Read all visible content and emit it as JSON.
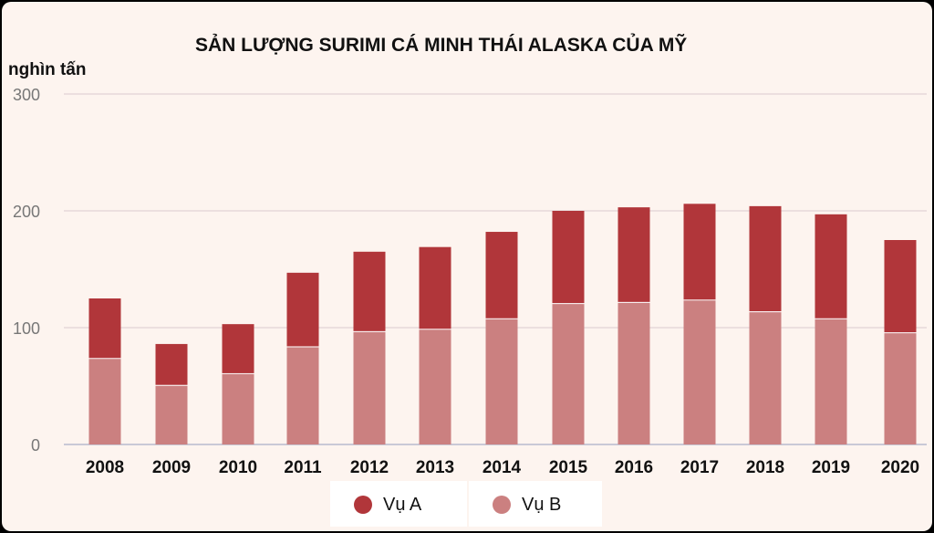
{
  "title": "SẢN LƯỢNG SURIMI CÁ MINH THÁI ALASKA CỦA MỸ",
  "unit_label": "nghìn tấn",
  "legend": [
    {
      "label": "Vụ A",
      "color": "#b1363a"
    },
    {
      "label": "Vụ B",
      "color": "#cb8080"
    }
  ],
  "chart_data": {
    "type": "bar",
    "stacked": true,
    "title": "SẢN LƯỢNG SURIMI CÁ MINH THÁI ALASKA CỦA MỸ",
    "ylabel": "nghìn tấn",
    "ylim": [
      0,
      300
    ],
    "yticks": [
      0,
      100,
      200,
      300
    ],
    "grid": true,
    "legend_position": "bottom",
    "categories": [
      "2008",
      "2009",
      "2010",
      "2011",
      "2012",
      "2013",
      "2014",
      "2015",
      "2016",
      "2017",
      "2018",
      "2019",
      "2020"
    ],
    "series": [
      {
        "name": "Vụ B",
        "color": "#cb8080",
        "values": [
          74,
          51,
          61,
          84,
          97,
          99,
          108,
          121,
          122,
          124,
          114,
          108,
          96
        ]
      },
      {
        "name": "Vụ A",
        "color": "#b1363a",
        "values": [
          51,
          35,
          42,
          63,
          68,
          70,
          74,
          79,
          81,
          82,
          90,
          89,
          79
        ]
      }
    ]
  }
}
